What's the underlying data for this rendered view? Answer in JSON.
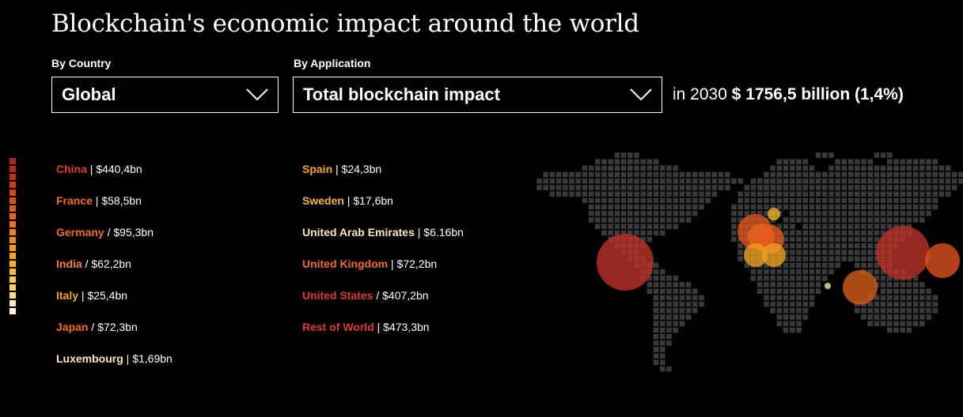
{
  "title": "Blockchain's economic impact around the world",
  "filters": {
    "country": {
      "label": "By Country",
      "value": "Global"
    },
    "application": {
      "label": "By Application",
      "value": "Total blockchain impact"
    }
  },
  "summary": {
    "prefix": "in 2030",
    "total": "$ 1756,5 billion (1,4%)"
  },
  "colors": {
    "background": "#000000",
    "dot": "#3a3a3a",
    "scale": [
      "#a8261c",
      "#b42a1e",
      "#c32f1f",
      "#cf3a1e",
      "#d8441c",
      "#df501b",
      "#e55b1b",
      "#ea671a",
      "#ee721a",
      "#f17f1b",
      "#f48b1c",
      "#f5981f",
      "#f6a424",
      "#f7af2c",
      "#f8ba3a",
      "#f9c54f",
      "#fad06a",
      "#fbdc8c",
      "#fde7b4",
      "#fff2da"
    ]
  },
  "countries_left": [
    {
      "name": "China",
      "sep": " | ",
      "value": "$440,4bn",
      "color": "#e03a26"
    },
    {
      "name": "France",
      "sep": " | ",
      "value": "$58,5bn",
      "color": "#f26b1d"
    },
    {
      "name": "Germany",
      "sep": " / ",
      "value": "$95,3bn",
      "color": "#f26b1d"
    },
    {
      "name": "India",
      "sep": " / ",
      "value": "$62,2bn",
      "color": "#f5821f"
    },
    {
      "name": "Italy",
      "sep": " | ",
      "value": "$25,4bn",
      "color": "#f6a31f"
    },
    {
      "name": "Japan",
      "sep": " / ",
      "value": "$72,3bn",
      "color": "#f26b1d"
    },
    {
      "name": "Luxembourg",
      "sep": " | ",
      "value": "$1,69bn",
      "color": "#fde7b4"
    }
  ],
  "countries_right": [
    {
      "name": "Spain",
      "sep": " | ",
      "value": "$24,3bn",
      "color": "#f6a31f"
    },
    {
      "name": "Sweden",
      "sep": " | ",
      "value": "$17,6bn",
      "color": "#f8b531"
    },
    {
      "name": "United Arab Emirates",
      "sep": " | ",
      "value": "$6.16bn",
      "color": "#fde7b4"
    },
    {
      "name": "United Kingdom",
      "sep": " | ",
      "value": "$72,2bn",
      "color": "#f26b1d"
    },
    {
      "name": "United States",
      "sep": " / ",
      "value": "$407,2bn",
      "color": "#e03a26"
    },
    {
      "name": "Rest of World",
      "sep": " | ",
      "value": "$473,3bn",
      "color": "#e03a26"
    }
  ],
  "map": {
    "bubbles": [
      {
        "country": "United States",
        "color": "#c0322a"
      },
      {
        "country": "France",
        "color": "#e2531f"
      },
      {
        "country": "United Kingdom",
        "color": "#ea651d"
      },
      {
        "country": "Germany",
        "color": "#e95a1e"
      },
      {
        "country": "Spain",
        "color": "#f0a11f"
      },
      {
        "country": "Italy",
        "color": "#f0a11f"
      },
      {
        "country": "Sweden",
        "color": "#f4b531"
      },
      {
        "country": "United Arab Emirates",
        "color": "#fde7b4"
      },
      {
        "country": "India",
        "color": "#d9601a"
      },
      {
        "country": "China",
        "color": "#c0322a"
      },
      {
        "country": "Japan",
        "color": "#e2531f"
      }
    ]
  }
}
